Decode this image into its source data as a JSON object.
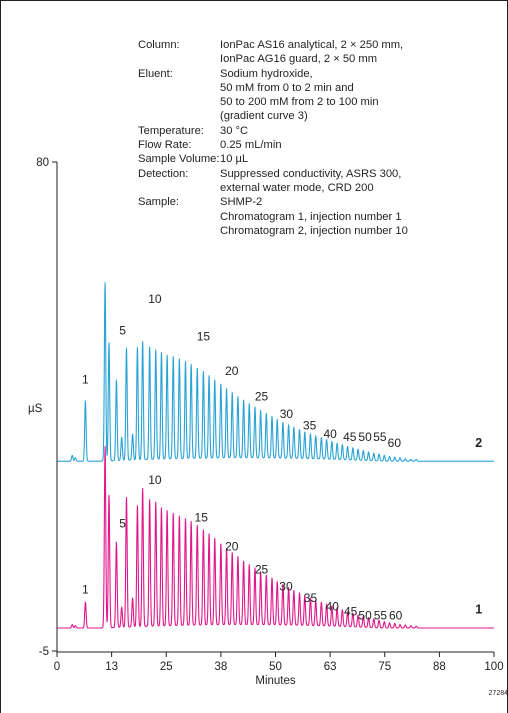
{
  "colors": {
    "trace_1": "#e0168a",
    "trace_2": "#29a3d6",
    "axis": "#231f20"
  },
  "conditions": [
    {
      "label": "Column:",
      "lines": [
        "IonPac AS16 analytical, 2 × 250 mm,",
        "IonPac AG16 guard, 2 × 50 mm"
      ]
    },
    {
      "label": "Eluent:",
      "lines": [
        "Sodium hydroxide,",
        "50 mM from 0 to 2 min and",
        "50 to 200 mM from 2 to 100 min",
        "(gradient curve 3)"
      ]
    },
    {
      "label": "Temperature:",
      "lines": [
        "30 °C"
      ]
    },
    {
      "label": "Flow Rate:",
      "lines": [
        "0.25 mL/min"
      ]
    },
    {
      "label": "Sample Volume:",
      "lines": [
        "10 µL"
      ]
    },
    {
      "label": "Detection:",
      "lines": [
        "Suppressed conductivity, ASRS 300,",
        "external water mode, CRD 200"
      ]
    },
    {
      "label": "Sample:",
      "lines": [
        "SHMP-2",
        "Chromatogram 1, injection number 1",
        "Chromatogram 2, injection number 10"
      ]
    }
  ],
  "figure_id": "27284",
  "chart_data": {
    "type": "line",
    "xlabel": "Minutes",
    "ylabel": "µS",
    "xlim": [
      0,
      100
    ],
    "ylim": [
      -5,
      80
    ],
    "x_ticks": [
      "0",
      "13",
      "25",
      "38",
      "50",
      "63",
      "75",
      "88",
      "100"
    ],
    "x_tick_values": [
      0,
      12.5,
      25,
      37.5,
      50,
      62.5,
      75,
      87.5,
      100
    ],
    "y_ticks": [
      "80",
      "-5"
    ],
    "y_tick_values": [
      80,
      -5
    ],
    "grid": false,
    "series": [
      {
        "name": "1",
        "baseline": -1,
        "peaks": [
          {
            "x": 3.5,
            "h": 0.6
          },
          {
            "x": 4.2,
            "h": 0.4
          },
          {
            "x": 6.5,
            "h": 4.5
          },
          {
            "x": 11.0,
            "h": 31.5
          },
          {
            "x": 11.9,
            "h": 23.0
          },
          {
            "x": 13.6,
            "h": 14.8
          },
          {
            "x": 14.8,
            "h": 3.5
          },
          {
            "x": 15.9,
            "h": 22.5
          },
          {
            "x": 17.3,
            "h": 5.0
          },
          {
            "x": 18.4,
            "h": 21.0
          },
          {
            "x": 19.6,
            "h": 24.0
          },
          {
            "x": 21.2,
            "h": 22.0
          },
          {
            "x": 22.6,
            "h": 21.5
          },
          {
            "x": 23.9,
            "h": 20.5
          },
          {
            "x": 25.2,
            "h": 20.0
          },
          {
            "x": 26.6,
            "h": 19.5
          },
          {
            "x": 28.0,
            "h": 19.0
          },
          {
            "x": 29.4,
            "h": 18.5
          },
          {
            "x": 30.7,
            "h": 18.0
          },
          {
            "x": 32.1,
            "h": 17.3
          },
          {
            "x": 33.5,
            "h": 16.5
          },
          {
            "x": 34.8,
            "h": 15.8
          },
          {
            "x": 36.1,
            "h": 15.0
          },
          {
            "x": 37.5,
            "h": 14.0
          },
          {
            "x": 38.8,
            "h": 13.2
          },
          {
            "x": 40.1,
            "h": 12.5
          },
          {
            "x": 41.4,
            "h": 11.8
          },
          {
            "x": 42.7,
            "h": 11.0
          },
          {
            "x": 44.0,
            "h": 10.4
          },
          {
            "x": 45.3,
            "h": 9.8
          },
          {
            "x": 46.6,
            "h": 9.2
          },
          {
            "x": 47.9,
            "h": 8.6
          },
          {
            "x": 49.2,
            "h": 8.1
          },
          {
            "x": 50.4,
            "h": 7.5
          },
          {
            "x": 51.7,
            "h": 7.0
          },
          {
            "x": 53.0,
            "h": 6.5
          },
          {
            "x": 54.2,
            "h": 6.0
          },
          {
            "x": 55.5,
            "h": 5.6
          },
          {
            "x": 56.7,
            "h": 5.2
          },
          {
            "x": 58.0,
            "h": 4.8
          },
          {
            "x": 59.2,
            "h": 4.4
          },
          {
            "x": 60.5,
            "h": 4.1
          },
          {
            "x": 61.7,
            "h": 3.8
          },
          {
            "x": 62.9,
            "h": 3.5
          },
          {
            "x": 64.1,
            "h": 3.2
          },
          {
            "x": 65.3,
            "h": 2.9
          },
          {
            "x": 66.5,
            "h": 2.6
          },
          {
            "x": 67.7,
            "h": 2.4
          },
          {
            "x": 68.9,
            "h": 2.1
          },
          {
            "x": 70.1,
            "h": 1.9
          },
          {
            "x": 71.3,
            "h": 1.7
          },
          {
            "x": 72.5,
            "h": 1.5
          },
          {
            "x": 73.7,
            "h": 1.3
          },
          {
            "x": 74.9,
            "h": 1.1
          },
          {
            "x": 76.1,
            "h": 0.9
          },
          {
            "x": 77.3,
            "h": 0.8
          },
          {
            "x": 78.5,
            "h": 0.6
          },
          {
            "x": 79.7,
            "h": 0.5
          },
          {
            "x": 81.0,
            "h": 0.4
          },
          {
            "x": 82.2,
            "h": 0.3
          }
        ]
      },
      {
        "name": "2",
        "baseline": 28,
        "peaks": [
          {
            "x": 3.5,
            "h": 1.0
          },
          {
            "x": 4.2,
            "h": 0.6
          },
          {
            "x": 6.5,
            "h": 10.5
          },
          {
            "x": 11.0,
            "h": 31.0
          },
          {
            "x": 11.9,
            "h": 20.5
          },
          {
            "x": 13.6,
            "h": 14.0
          },
          {
            "x": 14.8,
            "h": 4.0
          },
          {
            "x": 15.9,
            "h": 19.5
          },
          {
            "x": 17.3,
            "h": 4.5
          },
          {
            "x": 18.4,
            "h": 19.5
          },
          {
            "x": 19.6,
            "h": 20.5
          },
          {
            "x": 21.2,
            "h": 19.5
          },
          {
            "x": 22.6,
            "h": 19.0
          },
          {
            "x": 23.9,
            "h": 18.5
          },
          {
            "x": 25.2,
            "h": 18.0
          },
          {
            "x": 26.6,
            "h": 17.7
          },
          {
            "x": 28.0,
            "h": 17.3
          },
          {
            "x": 29.4,
            "h": 16.8
          },
          {
            "x": 30.7,
            "h": 16.3
          },
          {
            "x": 32.1,
            "h": 15.6
          },
          {
            "x": 33.5,
            "h": 15.0
          },
          {
            "x": 34.8,
            "h": 14.3
          },
          {
            "x": 36.1,
            "h": 13.5
          },
          {
            "x": 37.5,
            "h": 12.8
          },
          {
            "x": 38.8,
            "h": 12.0
          },
          {
            "x": 40.1,
            "h": 11.3
          },
          {
            "x": 41.4,
            "h": 10.6
          },
          {
            "x": 42.7,
            "h": 10.0
          },
          {
            "x": 44.0,
            "h": 9.4
          },
          {
            "x": 45.3,
            "h": 8.8
          },
          {
            "x": 46.6,
            "h": 8.2
          },
          {
            "x": 47.9,
            "h": 7.7
          },
          {
            "x": 49.2,
            "h": 7.2
          },
          {
            "x": 50.4,
            "h": 6.7
          },
          {
            "x": 51.7,
            "h": 6.2
          },
          {
            "x": 53.0,
            "h": 5.8
          },
          {
            "x": 54.2,
            "h": 5.4
          },
          {
            "x": 55.5,
            "h": 5.0
          },
          {
            "x": 56.7,
            "h": 4.6
          },
          {
            "x": 58.0,
            "h": 4.3
          },
          {
            "x": 59.2,
            "h": 4.0
          },
          {
            "x": 60.5,
            "h": 3.7
          },
          {
            "x": 61.7,
            "h": 3.4
          },
          {
            "x": 62.9,
            "h": 3.1
          },
          {
            "x": 64.1,
            "h": 2.8
          },
          {
            "x": 65.3,
            "h": 2.6
          },
          {
            "x": 66.5,
            "h": 2.3
          },
          {
            "x": 67.7,
            "h": 2.1
          },
          {
            "x": 68.9,
            "h": 1.9
          },
          {
            "x": 70.1,
            "h": 1.7
          },
          {
            "x": 71.3,
            "h": 1.5
          },
          {
            "x": 72.5,
            "h": 1.3
          },
          {
            "x": 73.7,
            "h": 1.2
          },
          {
            "x": 74.9,
            "h": 1.0
          },
          {
            "x": 76.1,
            "h": 0.8
          },
          {
            "x": 77.3,
            "h": 0.7
          },
          {
            "x": 78.5,
            "h": 0.6
          },
          {
            "x": 79.7,
            "h": 0.4
          },
          {
            "x": 81.0,
            "h": 0.3
          },
          {
            "x": 82.2,
            "h": 0.3
          }
        ]
      }
    ],
    "annotations": [
      {
        "series": "2",
        "text": "1",
        "x": 6.5,
        "y": 41.5
      },
      {
        "series": "2",
        "text": "5",
        "x": 15.0,
        "y": 50.0
      },
      {
        "series": "2",
        "text": "10",
        "x": 22.4,
        "y": 55.5
      },
      {
        "series": "2",
        "text": "15",
        "x": 33.5,
        "y": 49.0
      },
      {
        "series": "2",
        "text": "20",
        "x": 40.0,
        "y": 43.0
      },
      {
        "series": "2",
        "text": "25",
        "x": 46.8,
        "y": 38.5
      },
      {
        "series": "2",
        "text": "30",
        "x": 52.5,
        "y": 35.5
      },
      {
        "series": "2",
        "text": "35",
        "x": 57.8,
        "y": 33.5
      },
      {
        "series": "2",
        "text": "40",
        "x": 62.5,
        "y": 32.0
      },
      {
        "series": "2",
        "text": "45",
        "x": 67.0,
        "y": 31.5
      },
      {
        "series": "2",
        "text": "50",
        "x": 70.5,
        "y": 31.5
      },
      {
        "series": "2",
        "text": "55",
        "x": 73.9,
        "y": 31.5
      },
      {
        "series": "2",
        "text": "60",
        "x": 77.2,
        "y": 30.5
      },
      {
        "series": "1",
        "text": "1",
        "x": 6.5,
        "y": 5.0
      },
      {
        "series": "1",
        "text": "5",
        "x": 15.0,
        "y": 16.5
      },
      {
        "series": "1",
        "text": "10",
        "x": 22.4,
        "y": 24.0
      },
      {
        "series": "1",
        "text": "15",
        "x": 33.0,
        "y": 17.5
      },
      {
        "series": "1",
        "text": "20",
        "x": 40.0,
        "y": 12.5
      },
      {
        "series": "1",
        "text": "25",
        "x": 46.8,
        "y": 8.5
      },
      {
        "series": "1",
        "text": "30",
        "x": 52.4,
        "y": 5.5
      },
      {
        "series": "1",
        "text": "35",
        "x": 58.0,
        "y": 3.5
      },
      {
        "series": "1",
        "text": "40",
        "x": 63.0,
        "y": 2.0
      },
      {
        "series": "1",
        "text": "45",
        "x": 67.2,
        "y": 1.2
      },
      {
        "series": "1",
        "text": "50",
        "x": 70.5,
        "y": 0.5
      },
      {
        "series": "1",
        "text": "55",
        "x": 74.0,
        "y": 0.5
      },
      {
        "series": "1",
        "text": "60",
        "x": 77.5,
        "y": 0.5
      }
    ],
    "trace_labels": [
      {
        "text": "2",
        "x": 96.5,
        "y": 30.5
      },
      {
        "text": "1",
        "x": 96.5,
        "y": 1.5
      }
    ]
  }
}
